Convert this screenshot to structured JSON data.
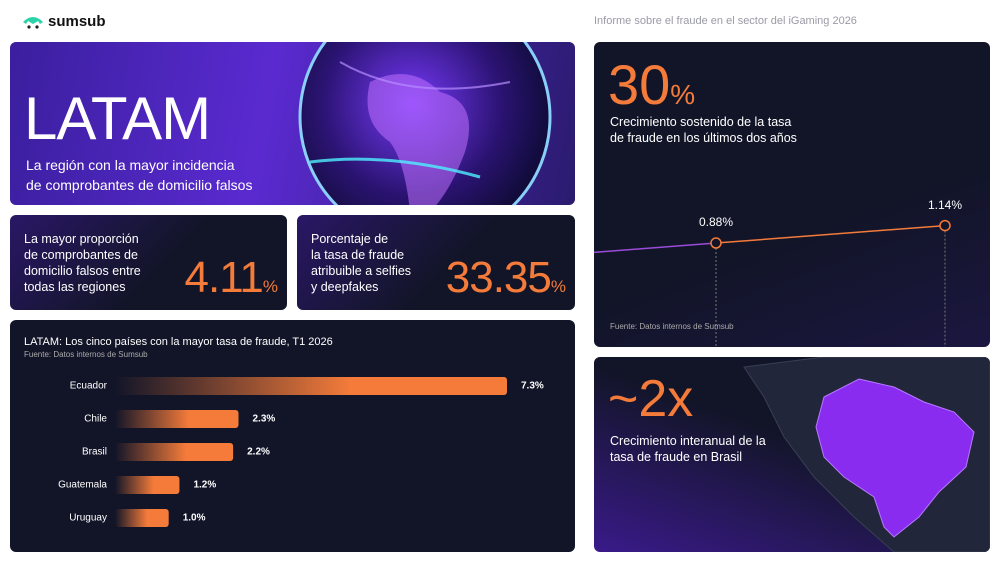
{
  "header": {
    "brand": "sumsub",
    "report": "Informe sobre el fraude en el sector del iGaming 2026"
  },
  "hero": {
    "title": "LATAM",
    "subtitle": [
      "La región con la mayor incidencia",
      "de comprobantes de domicilio falsos"
    ]
  },
  "stats": [
    {
      "text": [
        "La mayor proporción",
        "de comprobantes de",
        "domicilio falsos entre",
        "todas las regiones"
      ],
      "value": "4.11",
      "unit": "%"
    },
    {
      "text": [
        "Porcentaje de",
        "la tasa de fraude",
        "atribuible a selfies",
        "y deepfakes"
      ],
      "value": "33.35",
      "unit": "%"
    }
  ],
  "growth": {
    "value": "30",
    "unit": "%",
    "text": [
      "Crecimiento sostenido de la tasa",
      "de fraude en los últimos dos años"
    ],
    "source": "Fuente: Datos internos de Sumsub"
  },
  "brazil": {
    "value": "~2x",
    "text": [
      "Crecimiento interanual de la",
      "tasa de fraude en Brasil"
    ]
  },
  "chart_data": [
    {
      "type": "bar",
      "orientation": "horizontal",
      "title": "LATAM: Los cinco países con la mayor tasa de fraude, T1 2026",
      "subtitle": "Fuente: Datos internos de Sumsub",
      "categories": [
        "Ecuador",
        "Chile",
        "Brasil",
        "Guatemala",
        "Uruguay"
      ],
      "values": [
        7.3,
        2.3,
        2.2,
        1.2,
        1.0
      ],
      "value_labels": [
        "7.3%",
        "2.3%",
        "2.2%",
        "1.2%",
        "1.0%"
      ],
      "color": "#f47b3a"
    },
    {
      "type": "line",
      "values": [
        0.88,
        1.14
      ],
      "value_labels": [
        "0.88%",
        "1.14%"
      ],
      "color": "#f47b3a"
    }
  ]
}
